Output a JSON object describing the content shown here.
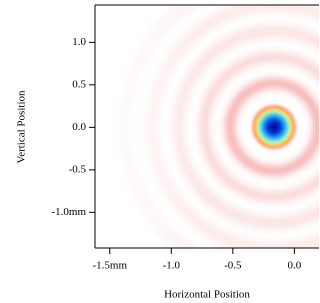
{
  "chart_data": {
    "type": "image",
    "xlabel": "Horizontal Position",
    "ylabel": "Vertical Position",
    "xlim": [
      -1.62,
      0.2
    ],
    "ylim": [
      -1.42,
      1.44
    ],
    "xticks": [
      {
        "value": -1.5,
        "label": "-1.5mm"
      },
      {
        "value": -1.0,
        "label": "-1.0"
      },
      -0.5,
      {
        "value": 0.0,
        "label": "0.0"
      }
    ],
    "yticks": [
      {
        "value": 1.0,
        "label": "1.0"
      },
      0.5,
      {
        "value": 0.0,
        "label": "0.0"
      },
      -0.5,
      {
        "value": -1.0,
        "label": "-1.0mm"
      }
    ]
  }
}
